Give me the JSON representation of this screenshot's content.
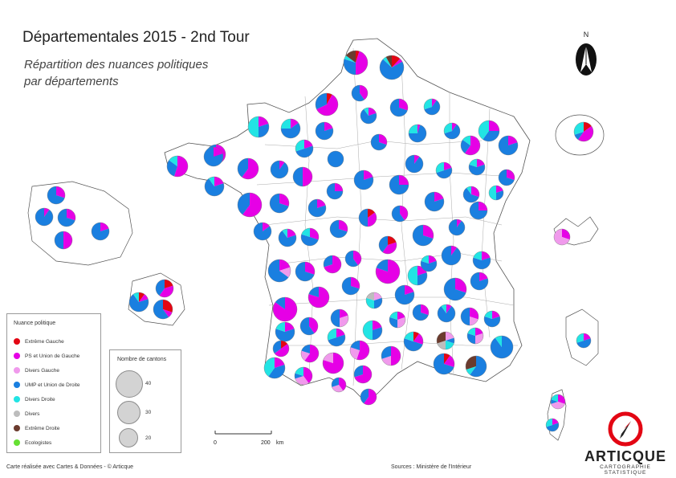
{
  "title": "Départementales 2015 - 2nd Tour",
  "subtitle_line1": "Répartition des nuances politiques",
  "subtitle_line2": "par départements",
  "legend": {
    "title": "Nuance politique",
    "items": [
      {
        "label": "Extrême Gauche",
        "color": "#e30613"
      },
      {
        "label": "PS et Union de Gauche",
        "color": "#e600e6"
      },
      {
        "label": "Divers Gauche",
        "color": "#f09aec"
      },
      {
        "label": "UMP et Union de Droite",
        "color": "#1a7fe0"
      },
      {
        "label": "Divers Droite",
        "color": "#22e4e4"
      },
      {
        "label": "Divers",
        "color": "#bdbdbd"
      },
      {
        "label": "Extrême Droite",
        "color": "#6b3b2e"
      },
      {
        "label": "Ecologistes",
        "color": "#66e033"
      }
    ]
  },
  "sizes": {
    "title": "Nombre de cantons",
    "items": [
      {
        "label": "40"
      },
      {
        "label": "30"
      },
      {
        "label": "20"
      }
    ]
  },
  "scale": {
    "zero": "0",
    "max": "200",
    "unit": "km"
  },
  "north_label": "N",
  "footer_left": "Carte réalisée avec Cartes & Données - © Articque",
  "footer_sources": "Sources : Ministère de l'Intérieur",
  "logo": {
    "word": "ARTICQUE",
    "tagline": "CARTOGRAPHIE STATISTIQUE"
  }
}
